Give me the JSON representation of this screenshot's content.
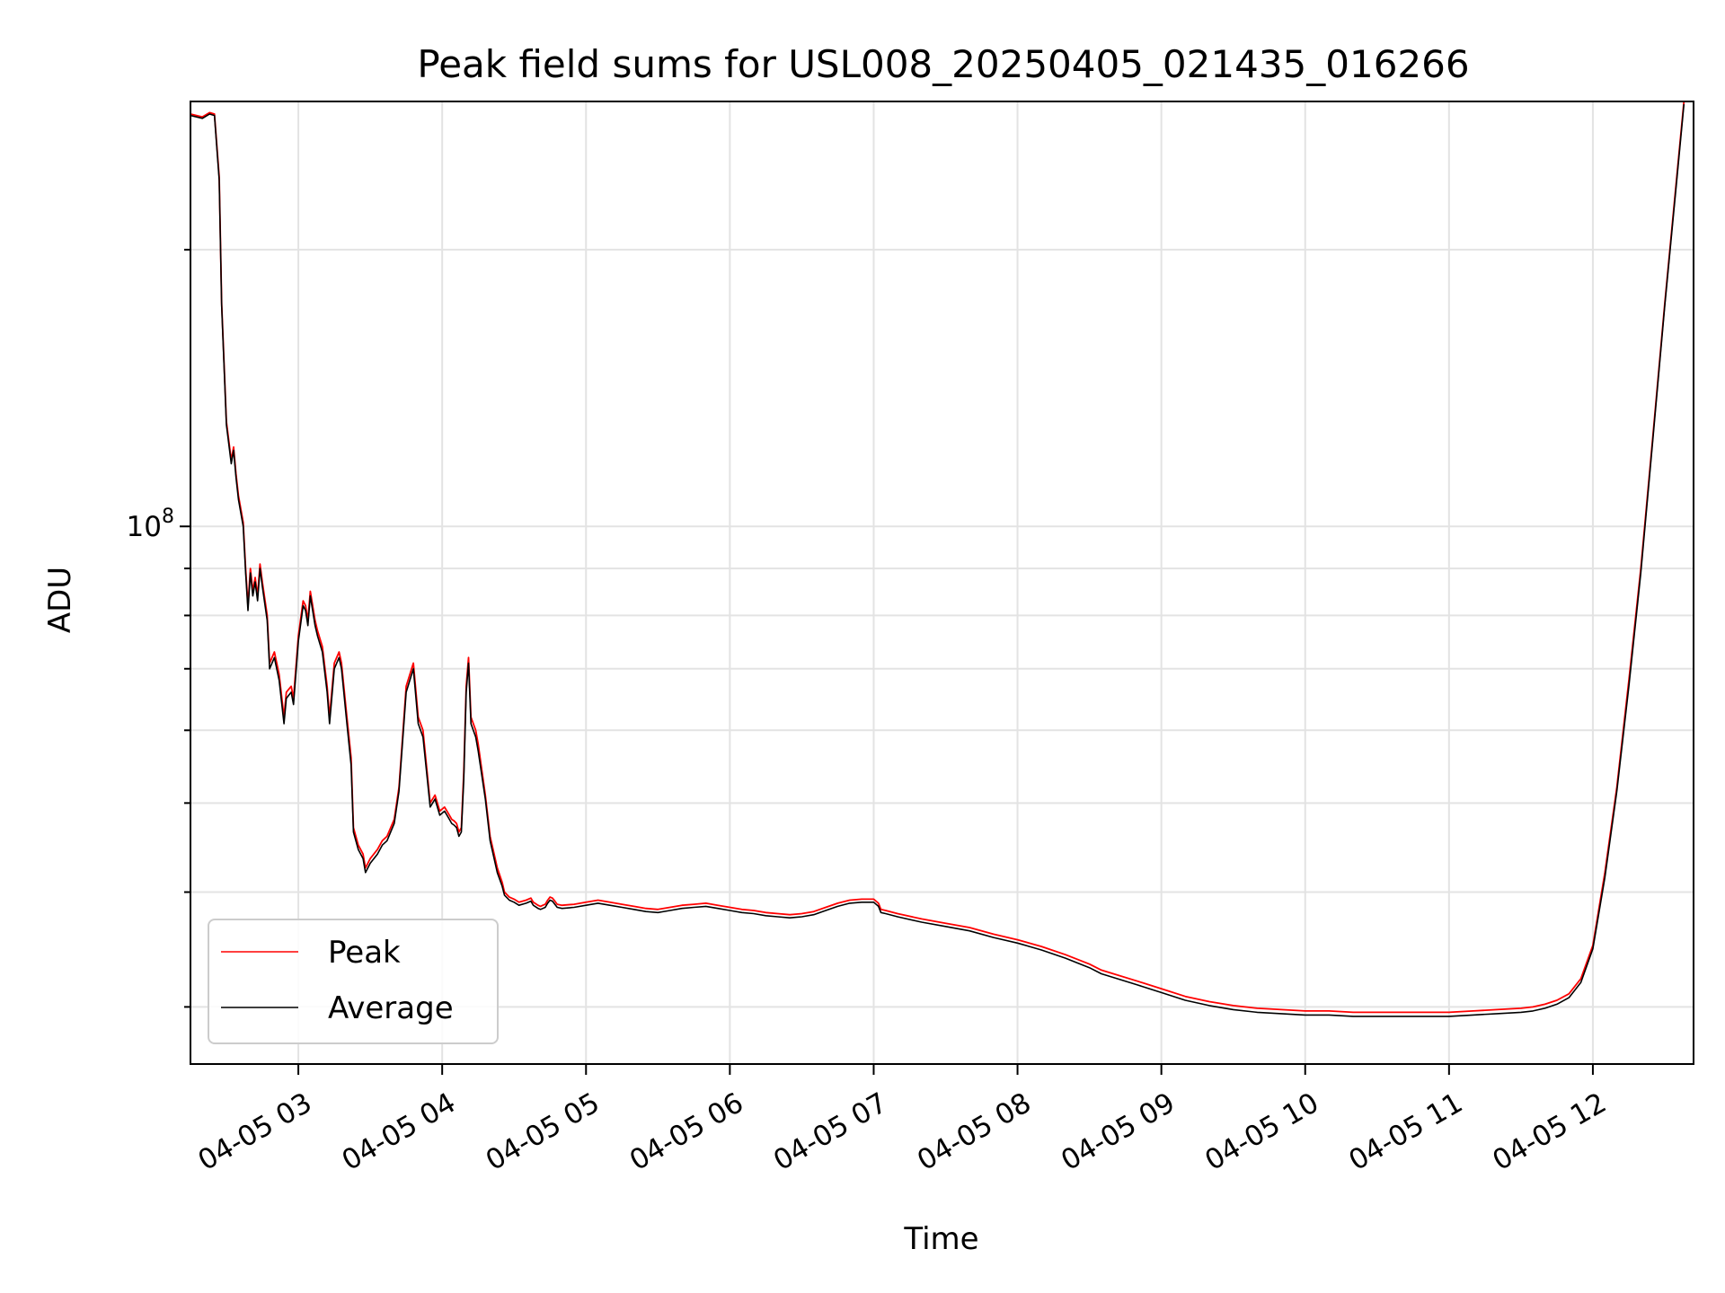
{
  "chart_data": {
    "type": "line",
    "title": "Peak field sums for USL008_20250405_021435_016266",
    "xlabel": "Time",
    "ylabel": "ADU",
    "x_scale": "time",
    "y_scale": "log",
    "x_ticks": [
      "04-05 03",
      "04-05 04",
      "04-05 05",
      "04-05 06",
      "04-05 07",
      "04-05 08",
      "04-05 09",
      "04-05 10",
      "04-05 11",
      "04-05 12"
    ],
    "y_ticks": [
      {
        "label": "10",
        "exponent": "8",
        "value": 100000000
      }
    ],
    "xlim": [
      "2025-04-05 02:15",
      "2025-04-05 12:42"
    ],
    "ylim": [
      26000000,
      290000000
    ],
    "grid": true,
    "legend_position": "lower-left",
    "colors": {
      "peak": "#ff0000",
      "average": "#000000"
    },
    "series": [
      {
        "name": "Peak",
        "color": "#ff0000",
        "x": [
          "02:15",
          "02:20",
          "02:23",
          "02:25",
          "02:27",
          "02:28",
          "02:30",
          "02:32",
          "02:33",
          "02:34",
          "02:35",
          "02:37",
          "02:38",
          "02:39",
          "02:40",
          "02:41",
          "02:42",
          "02:43",
          "02:44",
          "02:45",
          "02:47",
          "02:48",
          "02:50",
          "02:52",
          "02:54",
          "02:55",
          "02:57",
          "02:58",
          "03:00",
          "03:02",
          "03:03",
          "03:04",
          "03:05",
          "03:07",
          "03:08",
          "03:10",
          "03:12",
          "03:13",
          "03:15",
          "03:17",
          "03:18",
          "03:20",
          "03:22",
          "03:23",
          "03:25",
          "03:27",
          "03:28",
          "03:30",
          "03:33",
          "03:35",
          "03:37",
          "03:40",
          "03:42",
          "03:45",
          "03:48",
          "03:50",
          "03:52",
          "03:55",
          "03:57",
          "03:59",
          "04:01",
          "04:02",
          "04:03",
          "04:04",
          "04:05",
          "04:06",
          "04:07",
          "04:08",
          "04:09",
          "04:10",
          "04:11",
          "04:12",
          "04:14",
          "04:15",
          "04:18",
          "04:20",
          "04:23",
          "04:25",
          "04:26",
          "04:28",
          "04:30",
          "04:32",
          "04:35",
          "04:37",
          "04:38",
          "04:40",
          "04:41",
          "04:42",
          "04:43",
          "04:44",
          "04:45",
          "04:46",
          "04:47",
          "04:48",
          "04:50",
          "04:55",
          "05:00",
          "05:05",
          "05:10",
          "05:15",
          "05:20",
          "05:25",
          "05:30",
          "05:35",
          "05:40",
          "05:45",
          "05:50",
          "05:55",
          "06:00",
          "06:05",
          "06:10",
          "06:15",
          "06:20",
          "06:25",
          "06:30",
          "06:35",
          "06:40",
          "06:45",
          "06:50",
          "06:55",
          "07:00",
          "07:02",
          "07:03",
          "07:05",
          "07:10",
          "07:20",
          "07:30",
          "07:40",
          "07:50",
          "08:00",
          "08:10",
          "08:20",
          "08:30",
          "08:35",
          "08:40",
          "08:50",
          "09:00",
          "09:10",
          "09:20",
          "09:30",
          "09:40",
          "09:50",
          "10:00",
          "10:10",
          "10:20",
          "10:30",
          "10:40",
          "10:50",
          "11:00",
          "11:10",
          "11:20",
          "11:30",
          "11:35",
          "11:40",
          "11:45",
          "11:50",
          "11:55",
          "12:00",
          "12:05",
          "12:10",
          "12:15",
          "12:20",
          "12:25",
          "12:30",
          "12:35",
          "12:38"
        ],
        "y": [
          281000000,
          279000000,
          282000000,
          281000000,
          240000000,
          175000000,
          130000000,
          118000000,
          122000000,
          114000000,
          108000000,
          101000000,
          90000000,
          82000000,
          90000000,
          85000000,
          88000000,
          84000000,
          91000000,
          87000000,
          80000000,
          71000000,
          73000000,
          69000000,
          62000000,
          66000000,
          67000000,
          65000000,
          76000000,
          83000000,
          82000000,
          79000000,
          85000000,
          79000000,
          77000000,
          74000000,
          67000000,
          62000000,
          71000000,
          73000000,
          71000000,
          63000000,
          56000000,
          47000000,
          45000000,
          44000000,
          42500000,
          43500000,
          44500000,
          45500000,
          46000000,
          48000000,
          52000000,
          67000000,
          71000000,
          62000000,
          60000000,
          50000000,
          51000000,
          49000000,
          49500000,
          49000000,
          48500000,
          48000000,
          47800000,
          47500000,
          46500000,
          47000000,
          54000000,
          67000000,
          72000000,
          62000000,
          60000000,
          58000000,
          51000000,
          46000000,
          42500000,
          41000000,
          40000000,
          39500000,
          39300000,
          39000000,
          39200000,
          39400000,
          39000000,
          38700000,
          38600000,
          38700000,
          38800000,
          39200000,
          39500000,
          39400000,
          39100000,
          38800000,
          38700000,
          38800000,
          39000000,
          39200000,
          39000000,
          38800000,
          38600000,
          38400000,
          38300000,
          38500000,
          38700000,
          38800000,
          38900000,
          38700000,
          38500000,
          38300000,
          38200000,
          38000000,
          37900000,
          37800000,
          37900000,
          38100000,
          38500000,
          38900000,
          39200000,
          39300000,
          39300000,
          38900000,
          38300000,
          38200000,
          37900000,
          37400000,
          37000000,
          36600000,
          36000000,
          35500000,
          34900000,
          34200000,
          33400000,
          32900000,
          32600000,
          32000000,
          31400000,
          30800000,
          30400000,
          30100000,
          29900000,
          29800000,
          29700000,
          29700000,
          29600000,
          29600000,
          29600000,
          29600000,
          29600000,
          29700000,
          29800000,
          29900000,
          30000000,
          30200000,
          30500000,
          31000000,
          32200000,
          35000000,
          42000000,
          52000000,
          68000000,
          90000000,
          125000000,
          175000000,
          240000000,
          290000000
        ]
      },
      {
        "name": "Average",
        "color": "#000000",
        "x": [
          "02:15",
          "02:20",
          "02:23",
          "02:25",
          "02:27",
          "02:28",
          "02:30",
          "02:32",
          "02:33",
          "02:34",
          "02:35",
          "02:37",
          "02:38",
          "02:39",
          "02:40",
          "02:41",
          "02:42",
          "02:43",
          "02:44",
          "02:45",
          "02:47",
          "02:48",
          "02:50",
          "02:52",
          "02:54",
          "02:55",
          "02:57",
          "02:58",
          "03:00",
          "03:02",
          "03:03",
          "03:04",
          "03:05",
          "03:07",
          "03:08",
          "03:10",
          "03:12",
          "03:13",
          "03:15",
          "03:17",
          "03:18",
          "03:20",
          "03:22",
          "03:23",
          "03:25",
          "03:27",
          "03:28",
          "03:30",
          "03:33",
          "03:35",
          "03:37",
          "03:40",
          "03:42",
          "03:45",
          "03:48",
          "03:50",
          "03:52",
          "03:55",
          "03:57",
          "03:59",
          "04:01",
          "04:02",
          "04:03",
          "04:04",
          "04:05",
          "04:06",
          "04:07",
          "04:08",
          "04:09",
          "04:10",
          "04:11",
          "04:12",
          "04:14",
          "04:15",
          "04:18",
          "04:20",
          "04:23",
          "04:25",
          "04:26",
          "04:28",
          "04:30",
          "04:32",
          "04:35",
          "04:37",
          "04:38",
          "04:40",
          "04:41",
          "04:42",
          "04:43",
          "04:44",
          "04:45",
          "04:46",
          "04:47",
          "04:48",
          "04:50",
          "04:55",
          "05:00",
          "05:05",
          "05:10",
          "05:15",
          "05:20",
          "05:25",
          "05:30",
          "05:35",
          "05:40",
          "05:45",
          "05:50",
          "05:55",
          "06:00",
          "06:05",
          "06:10",
          "06:15",
          "06:20",
          "06:25",
          "06:30",
          "06:35",
          "06:40",
          "06:45",
          "06:50",
          "06:55",
          "07:00",
          "07:02",
          "07:03",
          "07:05",
          "07:10",
          "07:20",
          "07:30",
          "07:40",
          "07:50",
          "08:00",
          "08:10",
          "08:20",
          "08:30",
          "08:35",
          "08:40",
          "08:50",
          "09:00",
          "09:10",
          "09:20",
          "09:30",
          "09:40",
          "09:50",
          "10:00",
          "10:10",
          "10:20",
          "10:30",
          "10:40",
          "10:50",
          "11:00",
          "11:10",
          "11:20",
          "11:30",
          "11:35",
          "11:40",
          "11:45",
          "11:50",
          "11:55",
          "12:00",
          "12:05",
          "12:10",
          "12:15",
          "12:20",
          "12:25",
          "12:30",
          "12:35",
          "12:38"
        ],
        "y": [
          280000000,
          278000000,
          281000000,
          280000000,
          238000000,
          174000000,
          129000000,
          117000000,
          121000000,
          113000000,
          107000000,
          100000000,
          89000000,
          81000000,
          89000000,
          84000000,
          87000000,
          83000000,
          90000000,
          86000000,
          79000000,
          70000000,
          72000000,
          68000000,
          61000000,
          65000000,
          66000000,
          64000000,
          75000000,
          82000000,
          81000000,
          78000000,
          84000000,
          78000000,
          76000000,
          73000000,
          66000000,
          61000000,
          70000000,
          72000000,
          70000000,
          62000000,
          55000000,
          46500000,
          44500000,
          43500000,
          42000000,
          43000000,
          44000000,
          45000000,
          45500000,
          47500000,
          51500000,
          66000000,
          70000000,
          61000000,
          59000000,
          49500000,
          50500000,
          48500000,
          49000000,
          48500000,
          48000000,
          47500000,
          47300000,
          47000000,
          46000000,
          46500000,
          53000000,
          66000000,
          71000000,
          61000000,
          59000000,
          57000000,
          50500000,
          45500000,
          42000000,
          40600000,
          39700000,
          39200000,
          39000000,
          38700000,
          38900000,
          39100000,
          38700000,
          38400000,
          38300000,
          38400000,
          38500000,
          38900000,
          39200000,
          39100000,
          38800000,
          38500000,
          38400000,
          38500000,
          38700000,
          38900000,
          38700000,
          38500000,
          38300000,
          38100000,
          38000000,
          38200000,
          38400000,
          38500000,
          38600000,
          38400000,
          38200000,
          38000000,
          37900000,
          37700000,
          37600000,
          37500000,
          37600000,
          37800000,
          38200000,
          38600000,
          38900000,
          39000000,
          39000000,
          38600000,
          38000000,
          37900000,
          37600000,
          37100000,
          36700000,
          36300000,
          35700000,
          35200000,
          34600000,
          33900000,
          33100000,
          32600000,
          32300000,
          31700000,
          31100000,
          30500000,
          30100000,
          29800000,
          29600000,
          29500000,
          29400000,
          29400000,
          29300000,
          29300000,
          29300000,
          29300000,
          29300000,
          29400000,
          29500000,
          29600000,
          29700000,
          29900000,
          30200000,
          30700000,
          31900000,
          34700000,
          41500000,
          51500000,
          67000000,
          89000000,
          124000000,
          174000000,
          238000000,
          288000000
        ]
      }
    ]
  }
}
